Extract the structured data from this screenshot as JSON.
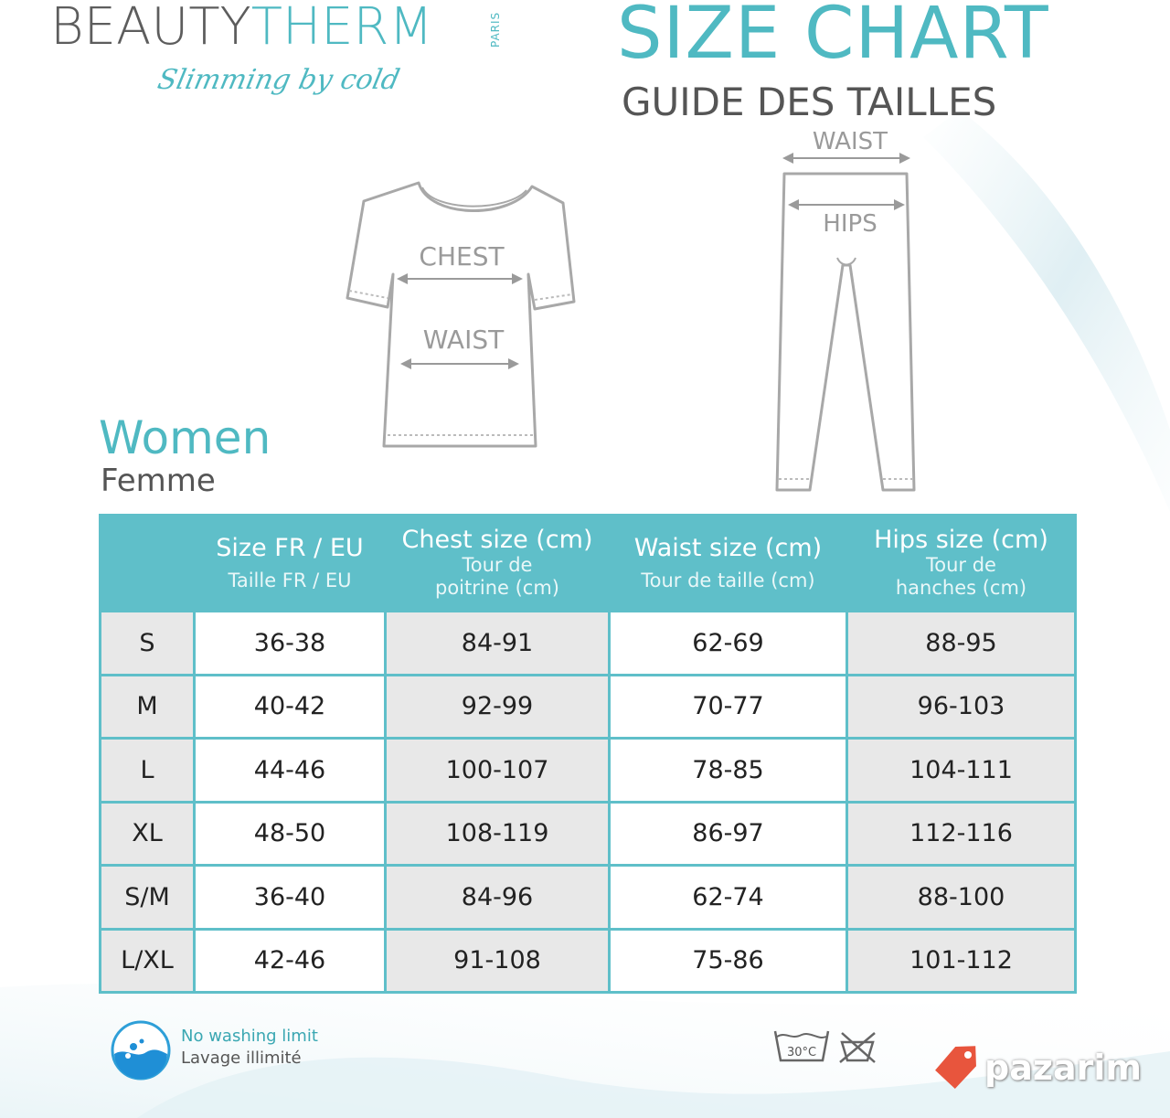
{
  "brand": {
    "name_part1": "BEAUTY",
    "name_part2": "THERM",
    "city": "PARIS",
    "tagline": "Slimming by cold"
  },
  "header": {
    "title": "SIZE CHART",
    "subtitle": "GUIDE DES TAILLES"
  },
  "illustration": {
    "shirt_chest_label": "CHEST",
    "shirt_waist_label": "WAIST",
    "pants_waist_label": "WAIST",
    "pants_hips_label": "HIPS"
  },
  "section": {
    "title": "Women",
    "subtitle": "Femme"
  },
  "table": {
    "headers": [
      {
        "en": "",
        "fr": ""
      },
      {
        "en": "Size FR / EU",
        "fr": "Taille FR / EU"
      },
      {
        "en": "Chest size (cm)",
        "fr": "Tour de poitrine (cm)"
      },
      {
        "en": "Waist size (cm)",
        "fr": "Tour de taille (cm)"
      },
      {
        "en": "Hips size (cm)",
        "fr": "Tour de hanches (cm)"
      }
    ],
    "rows": [
      [
        "S",
        "36-38",
        "84-91",
        "62-69",
        "88-95"
      ],
      [
        "M",
        "40-42",
        "92-99",
        "70-77",
        "96-103"
      ],
      [
        "L",
        "44-46",
        "100-107",
        "78-85",
        "104-111"
      ],
      [
        "XL",
        "48-50",
        "108-119",
        "86-97",
        "112-116"
      ],
      [
        "S/M",
        "36-40",
        "84-96",
        "62-74",
        "88-100"
      ],
      [
        "L/XL",
        "42-46",
        "91-108",
        "75-86",
        "101-112"
      ]
    ]
  },
  "footer": {
    "wash_en": "No washing limit",
    "wash_fr": "Lavage illimité",
    "wash_temp": "30°C",
    "watermark": "pazarim"
  },
  "colors": {
    "accent": "#4fb9c2",
    "table_header": "#5fbfc9",
    "text_dark": "#555555",
    "row_alt": "#e8e8e8",
    "watermark_tag": "#e8553d"
  },
  "icons": {
    "wash_icon": "water-drop-icon",
    "care_wash": "wash-30-icon",
    "care_dryer": "no-tumble-dry-icon",
    "watermark_tag": "price-tag-icon"
  }
}
